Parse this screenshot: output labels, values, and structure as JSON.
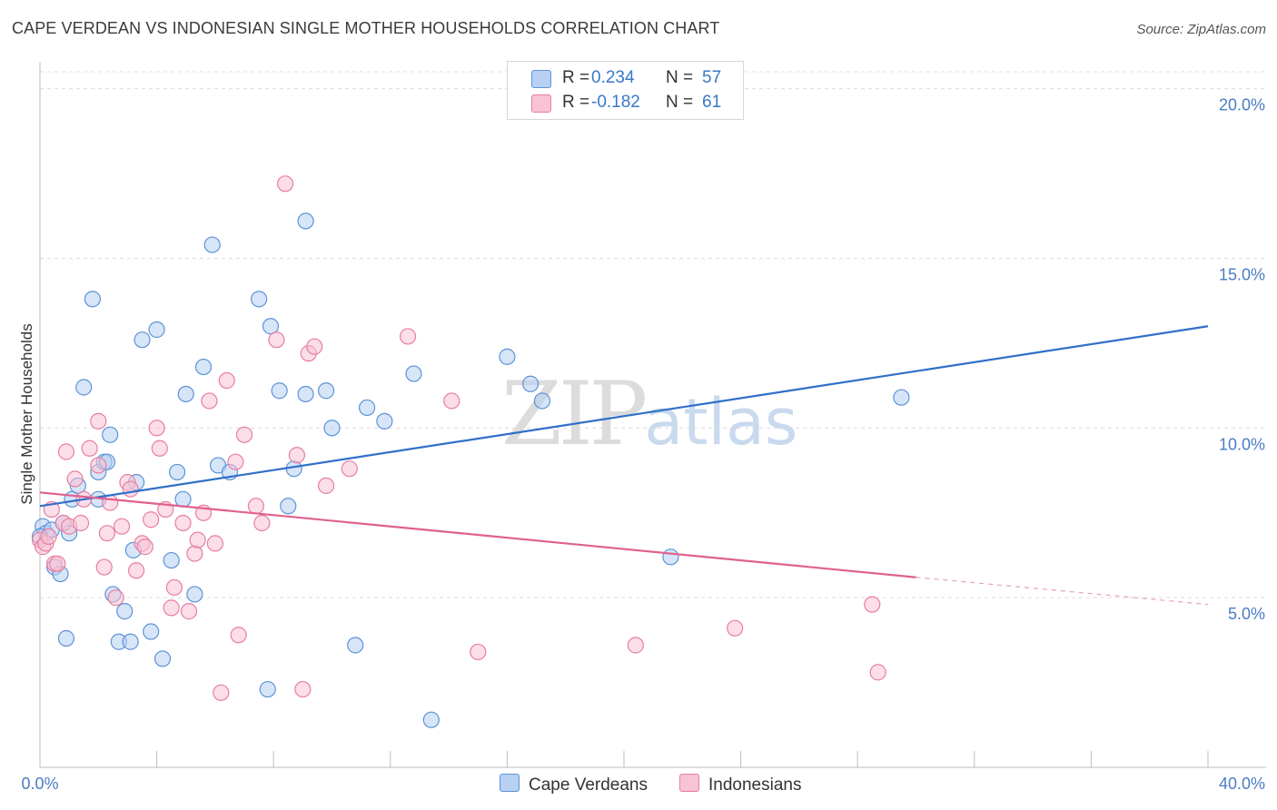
{
  "title": "CAPE VERDEAN VS INDONESIAN SINGLE MOTHER HOUSEHOLDS CORRELATION CHART",
  "source": "Source: ZipAtlas.com",
  "watermark": {
    "zip": "ZIP",
    "atlas": "atlas"
  },
  "legend": {
    "rows": [
      {
        "r_label": "R =",
        "r_value": "0.234",
        "n_label": "N =",
        "n_value": "57"
      },
      {
        "r_label": "R =",
        "r_value": "-0.182",
        "n_label": "N =",
        "n_value": "61"
      }
    ]
  },
  "colors": {
    "blue_fill": "#b7d0f3",
    "blue_stroke": "#5d93d6",
    "blue_line": "#2f6fc9",
    "pink_fill": "#f8c3d3",
    "pink_stroke": "#e87ea2",
    "pink_line": "#e0608f",
    "tick_label": "#4a7cc4",
    "grid": "#dcdcdc"
  },
  "chart_data": {
    "type": "scatter",
    "title": "CAPE VERDEAN VS INDONESIAN SINGLE MOTHER HOUSEHOLDS CORRELATION CHART",
    "ylabel": "Single Mother Households",
    "xlim": [
      0,
      40
    ],
    "ylim": [
      0,
      20.5
    ],
    "x_tick_labels": [
      "0.0%",
      "40.0%"
    ],
    "y_ticks": [
      5,
      10,
      15,
      20
    ],
    "y_tick_labels": [
      "5.0%",
      "10.0%",
      "15.0%",
      "20.0%"
    ],
    "grid": true,
    "legend_position": "top-center",
    "series": [
      {
        "name": "Cape Verdeans",
        "trend": {
          "x": [
            0,
            40
          ],
          "y": [
            7.7,
            13.0
          ]
        },
        "points": [
          [
            0.1,
            7.1
          ],
          [
            0.2,
            6.9
          ],
          [
            0.4,
            7.0
          ],
          [
            0.5,
            5.9
          ],
          [
            0.7,
            5.7
          ],
          [
            0.8,
            7.2
          ],
          [
            0.9,
            3.8
          ],
          [
            1.0,
            6.9
          ],
          [
            1.1,
            7.9
          ],
          [
            1.3,
            8.3
          ],
          [
            1.5,
            11.2
          ],
          [
            1.8,
            13.8
          ],
          [
            2.0,
            7.9
          ],
          [
            2.0,
            8.7
          ],
          [
            2.2,
            9.0
          ],
          [
            2.3,
            9.0
          ],
          [
            2.4,
            9.8
          ],
          [
            2.5,
            5.1
          ],
          [
            2.7,
            3.7
          ],
          [
            2.9,
            4.6
          ],
          [
            3.1,
            3.7
          ],
          [
            3.2,
            6.4
          ],
          [
            3.3,
            8.4
          ],
          [
            3.5,
            12.6
          ],
          [
            3.8,
            4.0
          ],
          [
            4.0,
            12.9
          ],
          [
            4.2,
            3.2
          ],
          [
            4.5,
            6.1
          ],
          [
            4.7,
            8.7
          ],
          [
            4.9,
            7.9
          ],
          [
            5.0,
            11.0
          ],
          [
            5.3,
            5.1
          ],
          [
            5.6,
            11.8
          ],
          [
            5.9,
            15.4
          ],
          [
            6.1,
            8.9
          ],
          [
            6.5,
            8.7
          ],
          [
            7.5,
            13.8
          ],
          [
            7.8,
            2.3
          ],
          [
            7.9,
            13.0
          ],
          [
            8.2,
            11.1
          ],
          [
            8.5,
            7.7
          ],
          [
            8.7,
            8.8
          ],
          [
            9.1,
            11.0
          ],
          [
            9.1,
            16.1
          ],
          [
            9.8,
            11.1
          ],
          [
            10.0,
            10.0
          ],
          [
            10.8,
            3.6
          ],
          [
            11.2,
            10.6
          ],
          [
            11.8,
            10.2
          ],
          [
            12.8,
            11.6
          ],
          [
            13.4,
            1.4
          ],
          [
            16.0,
            12.1
          ],
          [
            16.8,
            11.3
          ],
          [
            17.2,
            10.8
          ],
          [
            21.6,
            6.2
          ],
          [
            29.5,
            10.9
          ],
          [
            0.0,
            6.8
          ]
        ]
      },
      {
        "name": "Indonesians",
        "trend": {
          "x": [
            0,
            30
          ],
          "y": [
            8.1,
            5.6
          ]
        },
        "trend_dashed": {
          "x": [
            30,
            40
          ],
          "y": [
            5.6,
            4.8
          ]
        },
        "points": [
          [
            0.0,
            6.7
          ],
          [
            0.1,
            6.5
          ],
          [
            0.2,
            6.6
          ],
          [
            0.3,
            6.8
          ],
          [
            0.5,
            6.0
          ],
          [
            0.6,
            6.0
          ],
          [
            0.8,
            7.2
          ],
          [
            0.9,
            9.3
          ],
          [
            1.0,
            7.1
          ],
          [
            1.2,
            8.5
          ],
          [
            1.4,
            7.2
          ],
          [
            1.5,
            7.9
          ],
          [
            1.7,
            9.4
          ],
          [
            2.0,
            10.2
          ],
          [
            2.0,
            8.9
          ],
          [
            2.2,
            5.9
          ],
          [
            2.3,
            6.9
          ],
          [
            2.4,
            7.8
          ],
          [
            2.6,
            5.0
          ],
          [
            2.8,
            7.1
          ],
          [
            3.0,
            8.4
          ],
          [
            3.1,
            8.2
          ],
          [
            3.3,
            5.8
          ],
          [
            3.5,
            6.6
          ],
          [
            3.6,
            6.5
          ],
          [
            3.8,
            7.3
          ],
          [
            4.0,
            10.0
          ],
          [
            4.1,
            9.4
          ],
          [
            4.3,
            7.6
          ],
          [
            4.5,
            4.7
          ],
          [
            4.6,
            5.3
          ],
          [
            4.9,
            7.2
          ],
          [
            5.1,
            4.6
          ],
          [
            5.3,
            6.3
          ],
          [
            5.4,
            6.7
          ],
          [
            5.6,
            7.5
          ],
          [
            5.8,
            10.8
          ],
          [
            6.0,
            6.6
          ],
          [
            6.2,
            2.2
          ],
          [
            6.4,
            11.4
          ],
          [
            6.7,
            9.0
          ],
          [
            6.8,
            3.9
          ],
          [
            7.0,
            9.8
          ],
          [
            7.4,
            7.7
          ],
          [
            7.6,
            7.2
          ],
          [
            8.1,
            12.6
          ],
          [
            8.4,
            17.2
          ],
          [
            8.8,
            9.2
          ],
          [
            9.0,
            2.3
          ],
          [
            9.2,
            12.2
          ],
          [
            9.4,
            12.4
          ],
          [
            9.8,
            8.3
          ],
          [
            10.6,
            8.8
          ],
          [
            12.6,
            12.7
          ],
          [
            14.1,
            10.8
          ],
          [
            15.0,
            3.4
          ],
          [
            20.4,
            3.6
          ],
          [
            23.8,
            4.1
          ],
          [
            28.5,
            4.8
          ],
          [
            28.7,
            2.8
          ],
          [
            0.4,
            7.6
          ]
        ]
      }
    ]
  }
}
